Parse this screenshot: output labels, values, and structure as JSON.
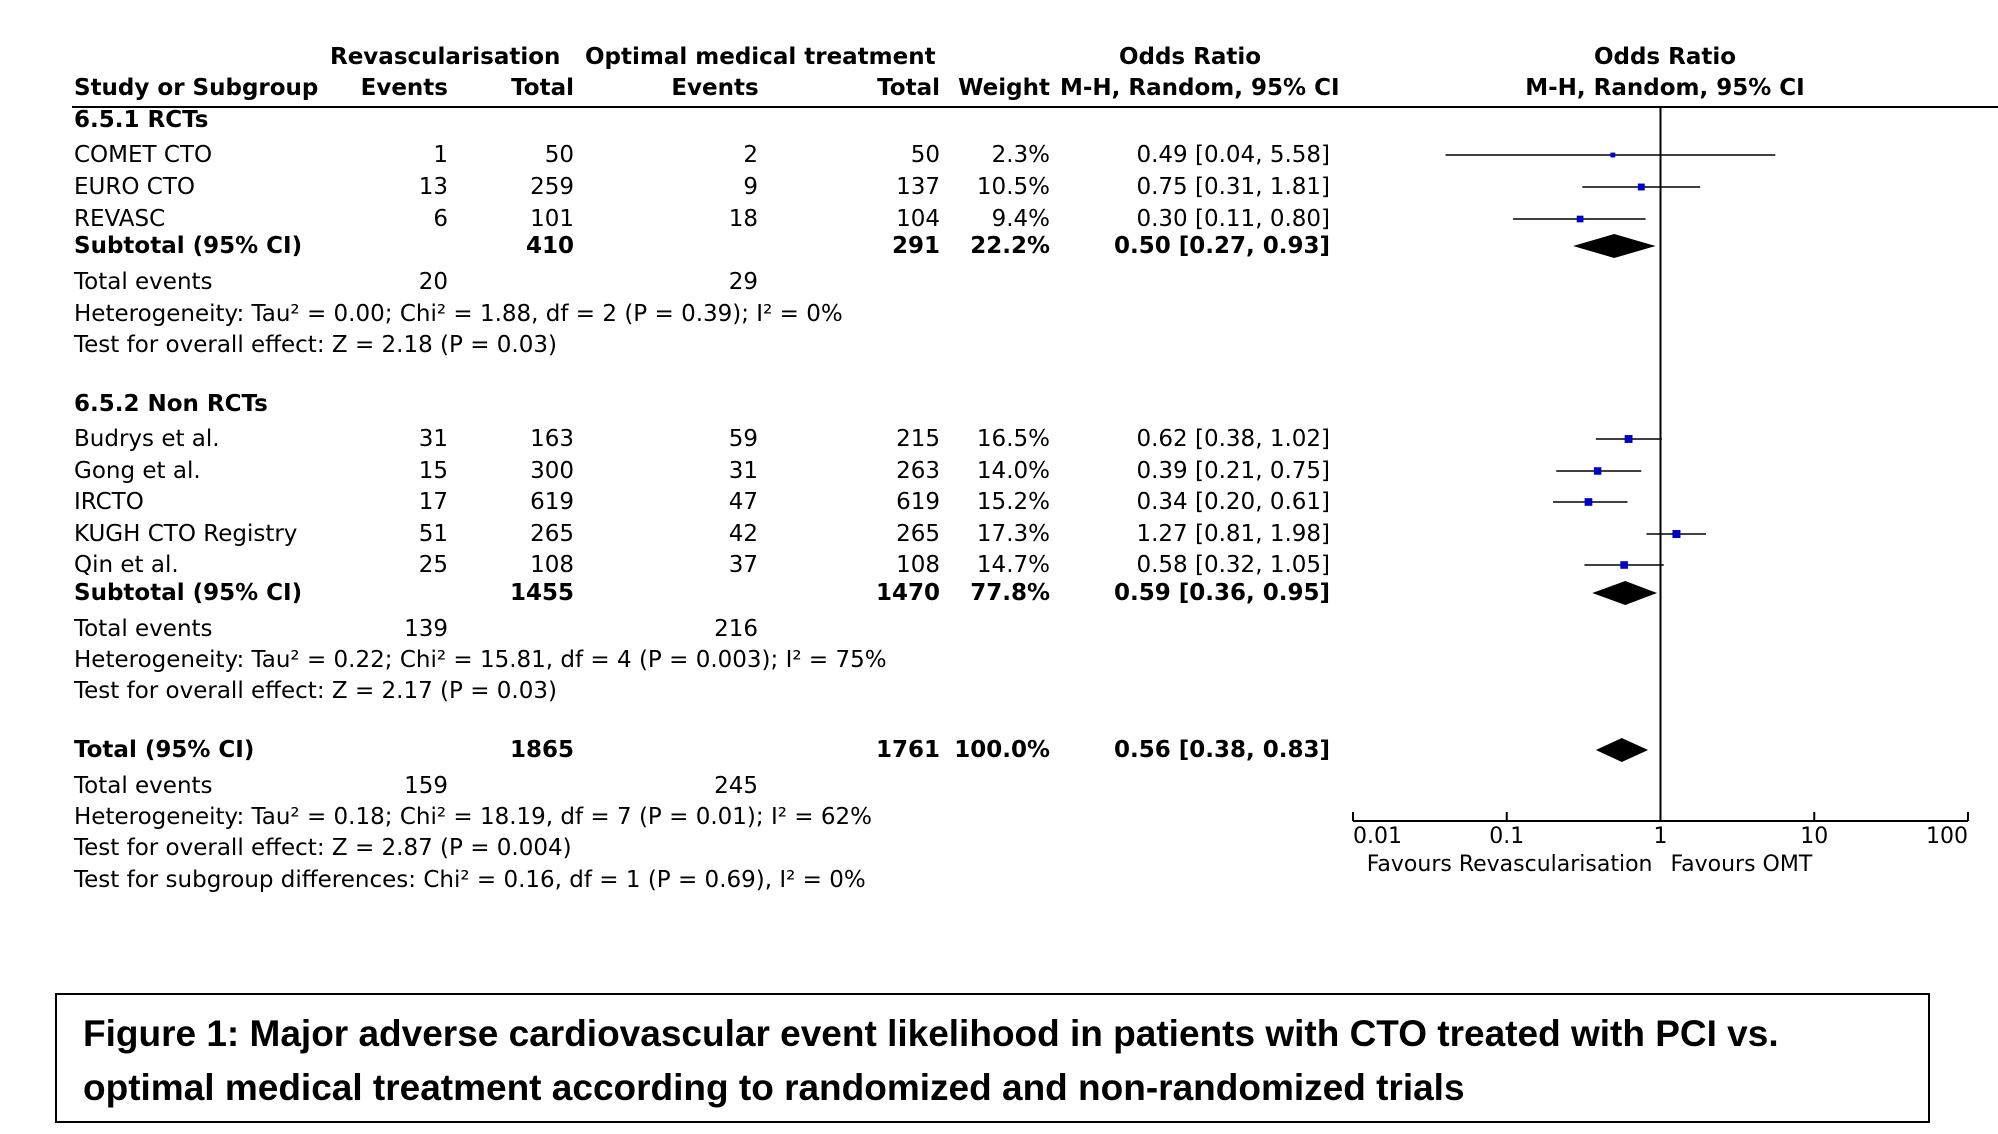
{
  "headers": {
    "study": "Study or Subgroup",
    "group1": "Revascularisation",
    "group2": "Optimal medical treatment",
    "events": "Events",
    "total": "Total",
    "weight": "Weight",
    "or_title": "Odds Ratio",
    "or_method": "M-H, Random, 95% CI",
    "plot_title": "Odds Ratio",
    "plot_method": "M-H, Random, 95% CI"
  },
  "sections": [
    {
      "title": "6.5.1 RCTs",
      "studies": [
        {
          "name": "COMET CTO",
          "e1": "1",
          "t1": "50",
          "e2": "2",
          "t2": "50",
          "weight": "2.3%",
          "ci": "0.49 [0.04, 5.58]"
        },
        {
          "name": "EURO CTO",
          "e1": "13",
          "t1": "259",
          "e2": "9",
          "t2": "137",
          "weight": "10.5%",
          "ci": "0.75 [0.31, 1.81]"
        },
        {
          "name": "REVASC",
          "e1": "6",
          "t1": "101",
          "e2": "18",
          "t2": "104",
          "weight": "9.4%",
          "ci": "0.30 [0.11, 0.80]"
        }
      ],
      "subtotal": {
        "label": "Subtotal (95% CI)",
        "t1": "410",
        "t2": "291",
        "weight": "22.2%",
        "ci": "0.50 [0.27, 0.93]"
      },
      "total_events": {
        "label": "Total events",
        "e1": "20",
        "e2": "29"
      },
      "heterogeneity": "Heterogeneity: Tau² = 0.00; Chi² = 1.88, df = 2 (P = 0.39); I² = 0%",
      "overall": "Test for overall effect: Z = 2.18 (P = 0.03)"
    },
    {
      "title": "6.5.2 Non RCTs",
      "studies": [
        {
          "name": "Budrys et al.",
          "e1": "31",
          "t1": "163",
          "e2": "59",
          "t2": "215",
          "weight": "16.5%",
          "ci": "0.62 [0.38, 1.02]"
        },
        {
          "name": "Gong et al.",
          "e1": "15",
          "t1": "300",
          "e2": "31",
          "t2": "263",
          "weight": "14.0%",
          "ci": "0.39 [0.21, 0.75]"
        },
        {
          "name": "IRCTO",
          "e1": "17",
          "t1": "619",
          "e2": "47",
          "t2": "619",
          "weight": "15.2%",
          "ci": "0.34 [0.20, 0.61]"
        },
        {
          "name": "KUGH CTO Registry",
          "e1": "51",
          "t1": "265",
          "e2": "42",
          "t2": "265",
          "weight": "17.3%",
          "ci": "1.27 [0.81, 1.98]"
        },
        {
          "name": "Qin et al.",
          "e1": "25",
          "t1": "108",
          "e2": "37",
          "t2": "108",
          "weight": "14.7%",
          "ci": "0.58 [0.32, 1.05]"
        }
      ],
      "subtotal": {
        "label": "Subtotal (95% CI)",
        "t1": "1455",
        "t2": "1470",
        "weight": "77.8%",
        "ci": "0.59 [0.36, 0.95]"
      },
      "total_events": {
        "label": "Total events",
        "e1": "139",
        "e2": "216"
      },
      "heterogeneity": "Heterogeneity: Tau² = 0.22; Chi² = 15.81, df = 4 (P = 0.003); I² = 75%",
      "overall": "Test for overall effect: Z = 2.17 (P = 0.03)"
    }
  ],
  "total": {
    "label": "Total (95% CI)",
    "t1": "1865",
    "t2": "1761",
    "weight": "100.0%",
    "ci": "0.56 [0.38, 0.83]",
    "total_events": {
      "label": "Total events",
      "e1": "159",
      "e2": "245"
    },
    "heterogeneity": "Heterogeneity: Tau² = 0.18; Chi² = 18.19, df = 7 (P = 0.01); I² = 62%",
    "overall": "Test for overall effect: Z = 2.87 (P = 0.004)",
    "subgroup": "Test for subgroup differences: Chi² = 0.16, df = 1 (P = 0.69), I² = 0%"
  },
  "caption": "Figure 1: Major adverse cardiovascular event likelihood in patients with CTO treated with PCI vs. optimal medical treatment according to randomized and non-randomized trials",
  "chart_data": {
    "type": "scatter",
    "xscale": "log",
    "xlim": [
      0.01,
      100
    ],
    "ticks": [
      0.01,
      0.1,
      1,
      10,
      100
    ],
    "tick_labels": [
      "0.01",
      "0.1",
      "1",
      "10",
      "100"
    ],
    "favours_left": "Favours Revascularisation",
    "favours_right": "Favours OMT",
    "reference_line": 1,
    "studies": [
      {
        "name": "COMET CTO",
        "or": 0.49,
        "lo": 0.04,
        "hi": 5.58,
        "weight": 2.3
      },
      {
        "name": "EURO CTO",
        "or": 0.75,
        "lo": 0.31,
        "hi": 1.81,
        "weight": 10.5
      },
      {
        "name": "REVASC",
        "or": 0.3,
        "lo": 0.11,
        "hi": 0.8,
        "weight": 9.4
      },
      {
        "name": "Budrys et al.",
        "or": 0.62,
        "lo": 0.38,
        "hi": 1.02,
        "weight": 16.5
      },
      {
        "name": "Gong et al.",
        "or": 0.39,
        "lo": 0.21,
        "hi": 0.75,
        "weight": 14.0
      },
      {
        "name": "IRCTO",
        "or": 0.34,
        "lo": 0.2,
        "hi": 0.61,
        "weight": 15.2
      },
      {
        "name": "KUGH CTO Registry",
        "or": 1.27,
        "lo": 0.81,
        "hi": 1.98,
        "weight": 17.3
      },
      {
        "name": "Qin et al.",
        "or": 0.58,
        "lo": 0.32,
        "hi": 1.05,
        "weight": 14.7
      }
    ],
    "diamonds": [
      {
        "name": "Subtotal RCTs",
        "or": 0.5,
        "lo": 0.27,
        "hi": 0.93
      },
      {
        "name": "Subtotal Non RCTs",
        "or": 0.59,
        "lo": 0.36,
        "hi": 0.95
      },
      {
        "name": "Total",
        "or": 0.56,
        "lo": 0.38,
        "hi": 0.83
      }
    ],
    "colors": {
      "marker": "#0000cc",
      "line": "#000000"
    }
  }
}
